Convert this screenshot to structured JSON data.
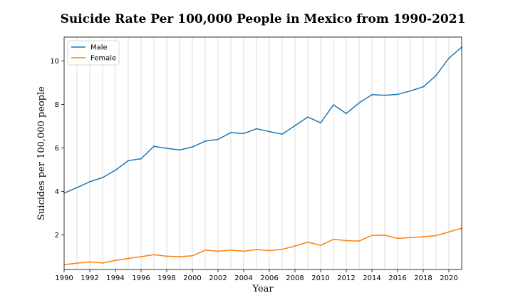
{
  "chart_data": {
    "type": "line",
    "title": "Suicide Rate Per 100,000 People in Mexico from 1990-2021",
    "xlabel": "Year",
    "ylabel": "Suicides per 100,000 people",
    "x": [
      1990,
      1991,
      1992,
      1993,
      1994,
      1995,
      1996,
      1997,
      1998,
      1999,
      2000,
      2001,
      2002,
      2003,
      2004,
      2005,
      2006,
      2007,
      2008,
      2009,
      2010,
      2011,
      2012,
      2013,
      2014,
      2015,
      2016,
      2017,
      2018,
      2019,
      2020,
      2021
    ],
    "xlim": [
      1990,
      2021
    ],
    "ylim": [
      0.4,
      11.1
    ],
    "xticks": [
      1990,
      1992,
      1994,
      1996,
      1998,
      2000,
      2002,
      2004,
      2006,
      2008,
      2010,
      2012,
      2014,
      2016,
      2018,
      2020
    ],
    "yticks": [
      2,
      4,
      6,
      8,
      10
    ],
    "grid": "vertical",
    "legend_position": "top-left",
    "series": [
      {
        "name": "Male",
        "color": "#1f77b4",
        "values": [
          3.92,
          4.17,
          4.44,
          4.63,
          4.97,
          5.41,
          5.5,
          6.07,
          5.98,
          5.9,
          6.04,
          6.31,
          6.39,
          6.7,
          6.66,
          6.88,
          6.75,
          6.63,
          7.02,
          7.42,
          7.15,
          7.98,
          7.58,
          8.07,
          8.45,
          8.42,
          8.46,
          8.62,
          8.81,
          9.33,
          10.13,
          10.63
        ]
      },
      {
        "name": "Female",
        "color": "#ff7f0e",
        "values": [
          0.62,
          0.69,
          0.75,
          0.7,
          0.82,
          0.91,
          0.99,
          1.08,
          1.01,
          0.99,
          1.03,
          1.29,
          1.24,
          1.29,
          1.24,
          1.32,
          1.27,
          1.33,
          1.48,
          1.66,
          1.51,
          1.79,
          1.73,
          1.71,
          1.97,
          1.98,
          1.83,
          1.87,
          1.91,
          1.96,
          2.13,
          2.3
        ]
      }
    ]
  }
}
